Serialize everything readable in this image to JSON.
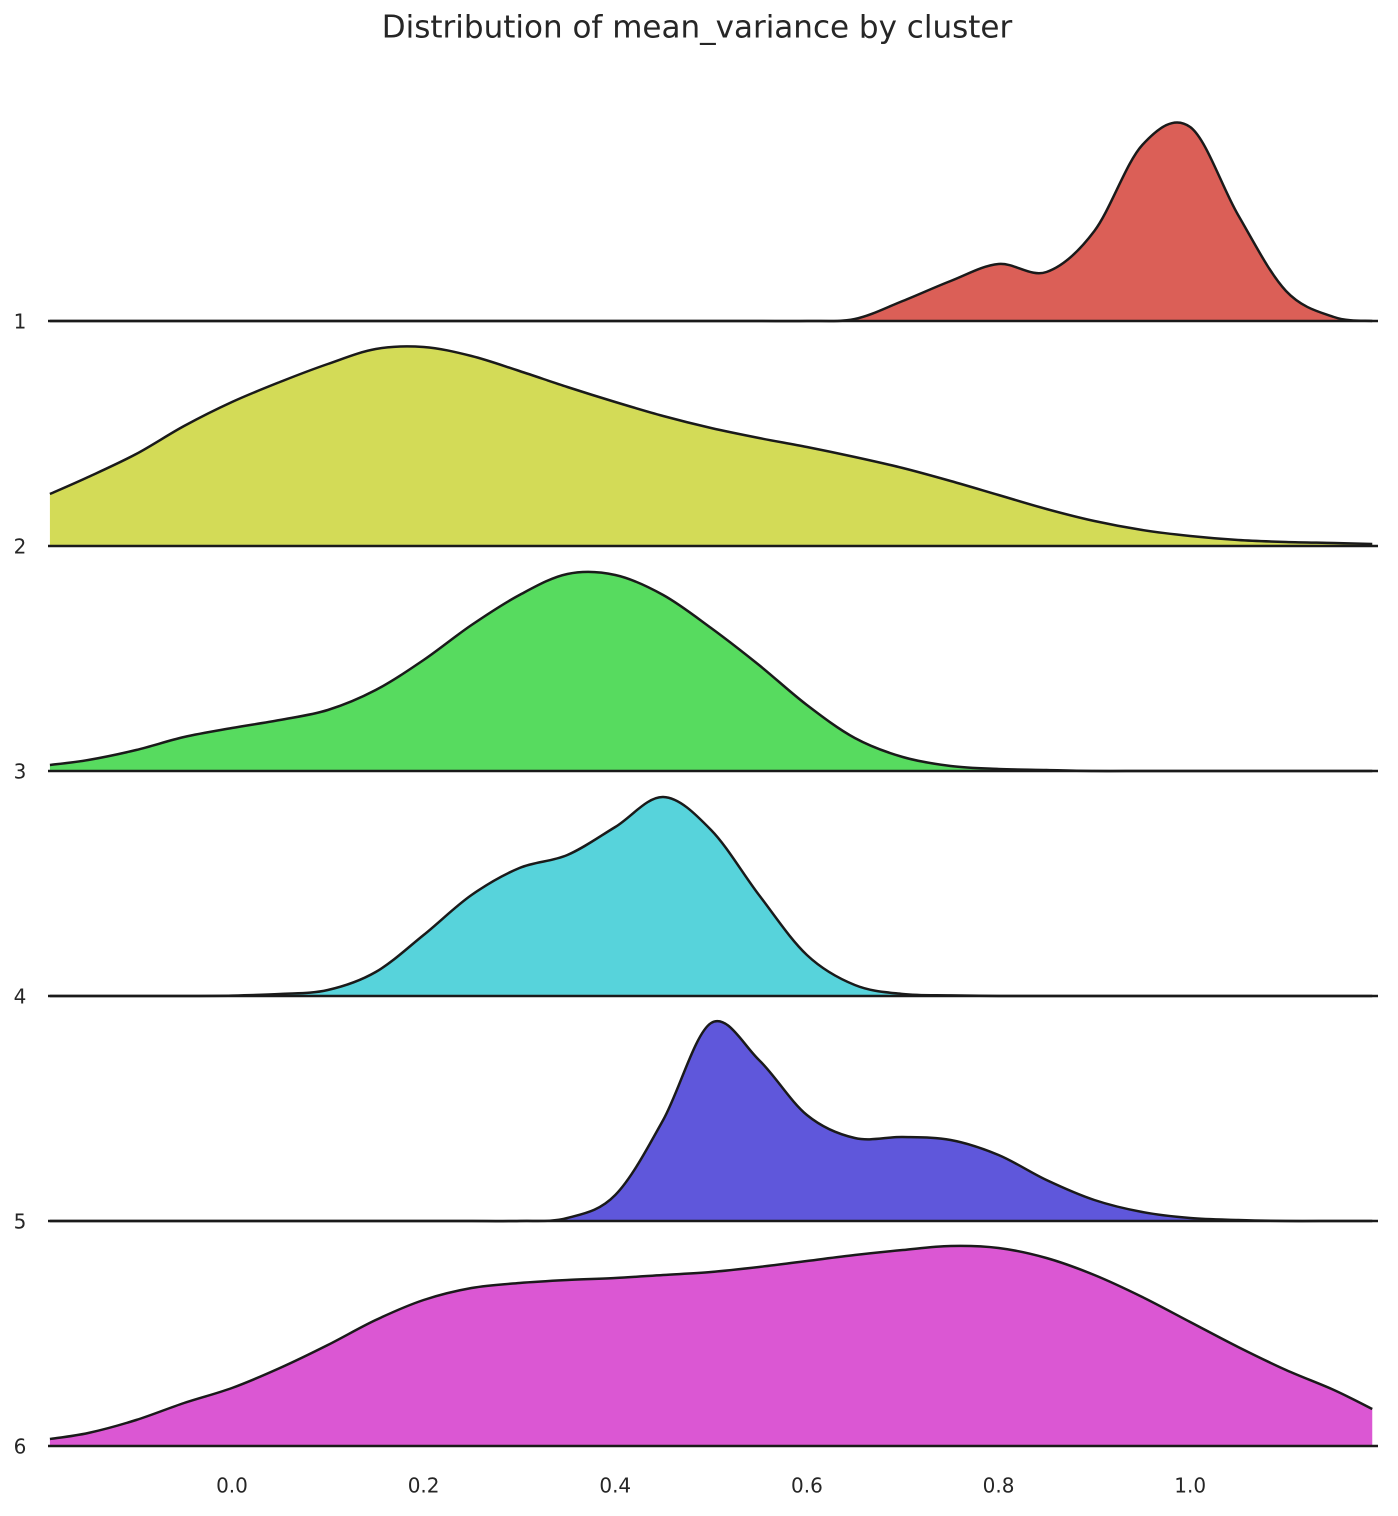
{
  "chart_data": {
    "type": "ridgeline",
    "title": "Distribution of mean_variance by cluster",
    "x": [
      -0.19,
      -0.15,
      -0.1,
      -0.05,
      0,
      0.05,
      0.1,
      0.15,
      0.2,
      0.25,
      0.3,
      0.35,
      0.4,
      0.45,
      0.5,
      0.55,
      0.6,
      0.65,
      0.7,
      0.75,
      0.8,
      0.85,
      0.9,
      0.95,
      1.0,
      1.05,
      1.1,
      1.15,
      1.19
    ],
    "xlim": [
      -0.192,
      1.196
    ],
    "xticks": [
      {
        "value": 0,
        "label": "0.0"
      },
      0.2,
      0.4,
      0.6,
      0.8,
      {
        "value": 1,
        "label": "1.0"
      }
    ],
    "ylim": [
      0,
      1.125
    ],
    "series": [
      {
        "name": "1",
        "color": "#db5f57",
        "values": [
          0,
          0,
          0,
          0,
          0,
          0,
          0,
          0,
          0,
          0,
          0,
          0,
          0,
          0,
          0,
          0,
          0,
          0.01,
          0.1,
          0.2,
          0.285,
          0.245,
          0.45,
          0.88,
          0.97,
          0.53,
          0.15,
          0.02,
          0
        ]
      },
      {
        "name": "2",
        "color": "#d3db57",
        "values": [
          0.26,
          0.345,
          0.46,
          0.6,
          0.72,
          0.82,
          0.91,
          0.985,
          0.995,
          0.95,
          0.875,
          0.795,
          0.72,
          0.65,
          0.59,
          0.54,
          0.495,
          0.445,
          0.39,
          0.325,
          0.255,
          0.185,
          0.125,
          0.08,
          0.05,
          0.03,
          0.02,
          0.015,
          0.01
        ]
      },
      {
        "name": "3",
        "color": "#57db5f",
        "values": [
          0.03,
          0.055,
          0.105,
          0.17,
          0.215,
          0.255,
          0.305,
          0.405,
          0.555,
          0.73,
          0.88,
          0.985,
          0.98,
          0.88,
          0.715,
          0.53,
          0.33,
          0.165,
          0.07,
          0.025,
          0.01,
          0.005,
          0,
          0,
          0,
          0,
          0,
          0,
          0
        ]
      },
      {
        "name": "4",
        "color": "#57d3db",
        "values": [
          0,
          0,
          0,
          0,
          0.002,
          0.01,
          0.03,
          0.12,
          0.305,
          0.505,
          0.64,
          0.705,
          0.845,
          0.995,
          0.83,
          0.505,
          0.205,
          0.055,
          0.01,
          0.003,
          0,
          0,
          0,
          0,
          0,
          0,
          0,
          0,
          0
        ]
      },
      {
        "name": "5",
        "color": "#5f57db",
        "values": [
          0,
          0,
          0,
          0,
          0,
          0,
          0,
          0,
          0,
          0,
          0,
          0.015,
          0.13,
          0.505,
          0.99,
          0.805,
          0.53,
          0.415,
          0.42,
          0.405,
          0.33,
          0.205,
          0.105,
          0.045,
          0.015,
          0.005,
          0,
          0,
          0
        ]
      },
      {
        "name": "6",
        "color": "#db57d3",
        "values": [
          0.035,
          0.065,
          0.13,
          0.215,
          0.29,
          0.39,
          0.505,
          0.63,
          0.73,
          0.79,
          0.815,
          0.83,
          0.84,
          0.855,
          0.87,
          0.895,
          0.925,
          0.955,
          0.98,
          1.0,
          0.99,
          0.94,
          0.855,
          0.745,
          0.62,
          0.495,
          0.38,
          0.28,
          0.185
        ]
      }
    ]
  }
}
